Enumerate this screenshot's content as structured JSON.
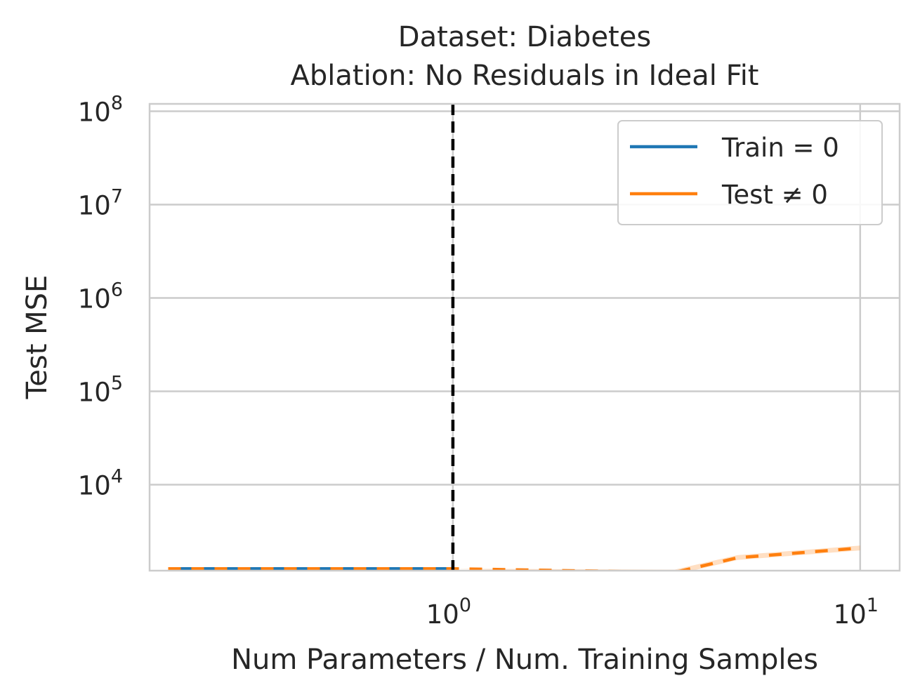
{
  "chart_data": {
    "type": "line",
    "title": "Dataset: Diabetes",
    "subtitle": "Ablation: No Residuals in Ideal Fit",
    "xlabel": "Num Parameters / Num. Training Samples",
    "ylabel": "Test MSE",
    "xscale": "log",
    "yscale": "log",
    "xlim": [
      0.18,
      12.5
    ],
    "ylim": [
      1200,
      120000000
    ],
    "x_ticks": [
      {
        "base": "10",
        "exp": "0",
        "value": 1
      },
      {
        "base": "10",
        "exp": "1",
        "value": 10
      }
    ],
    "y_ticks": [
      {
        "base": "10",
        "exp": "4",
        "value": 10000
      },
      {
        "base": "10",
        "exp": "5",
        "value": 100000
      },
      {
        "base": "10",
        "exp": "6",
        "value": 1000000
      },
      {
        "base": "10",
        "exp": "7",
        "value": 10000000
      },
      {
        "base": "10",
        "exp": "8",
        "value": 100000000
      }
    ],
    "grid": true,
    "legend_position": "top-right",
    "interpolation_threshold": 1,
    "series": [
      {
        "name": "Train = 0",
        "color": "#1f77b4",
        "x": [
          0.2,
          0.3,
          0.5,
          0.7,
          1.0
        ],
        "y": [
          1260,
          1260,
          1260,
          1260,
          1260
        ]
      },
      {
        "name": "Test ≠ 0",
        "color": "#ff7f0e",
        "dashed": true,
        "x": [
          0.2,
          0.3,
          0.5,
          0.7,
          1.0,
          3.5,
          5.0,
          10.0
        ],
        "y": [
          1260,
          1260,
          1260,
          1260,
          1260,
          1150,
          1650,
          2100
        ],
        "band_lower": [
          1260,
          1260,
          1260,
          1260,
          1260,
          1080,
          1560,
          1980
        ],
        "band_upper": [
          1260,
          1260,
          1260,
          1260,
          1260,
          1230,
          1760,
          2230
        ]
      }
    ]
  }
}
